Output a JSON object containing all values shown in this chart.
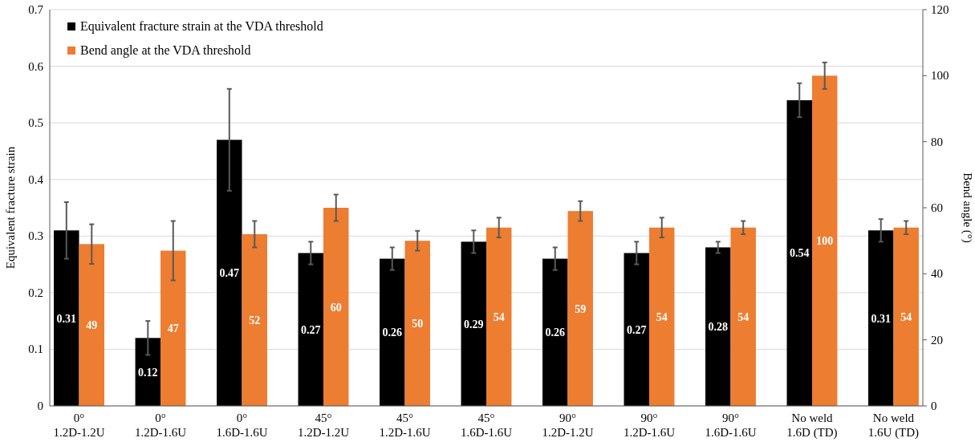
{
  "chart_data": {
    "type": "bar",
    "categories": [
      "0°\n1.2D-1.2U",
      "0°\n1.2D-1.6U",
      "0°\n1.6D-1.6U",
      "45°\n1.2D-1.2U",
      "45°\n1.2D-1.6U",
      "45°\n1.6D-1.6U",
      "90°\n1.2D-1.2U",
      "90°\n1.2D-1.6U",
      "90°\n1.6D-1.6U",
      "No weld\n1.6D (TD)",
      "No weld\n1.6U (TD)"
    ],
    "series": [
      {
        "name": "Equivalent fracture strain at the VDA threshold",
        "color": "#000000",
        "values": [
          0.31,
          0.12,
          0.47,
          0.27,
          0.26,
          0.29,
          0.26,
          0.27,
          0.28,
          0.54,
          0.31
        ],
        "errors": [
          0.05,
          0.03,
          0.09,
          0.02,
          0.02,
          0.02,
          0.02,
          0.02,
          0.01,
          0.03,
          0.02
        ]
      },
      {
        "name": "Bend angle at the VDA threshold",
        "color": "#ed7d31",
        "axis": "y2",
        "values": [
          49,
          47,
          52,
          60,
          50,
          54,
          59,
          54,
          54,
          100,
          54
        ],
        "errors": [
          6,
          9,
          4,
          4,
          3,
          3,
          3,
          3,
          2,
          4,
          2
        ]
      }
    ],
    "ylabel": "Equivalent fracture strain",
    "y2label": "Bend angle (°)",
    "ylim": [
      0,
      0.7
    ],
    "yticks": [
      0,
      0.1,
      0.2,
      0.3,
      0.4,
      0.5,
      0.6,
      0.7
    ],
    "y2lim": [
      0,
      120
    ],
    "y2ticks": [
      0,
      20,
      40,
      60,
      80,
      100,
      120
    ],
    "grid": "y",
    "legend": "top left",
    "data_labels": true
  }
}
